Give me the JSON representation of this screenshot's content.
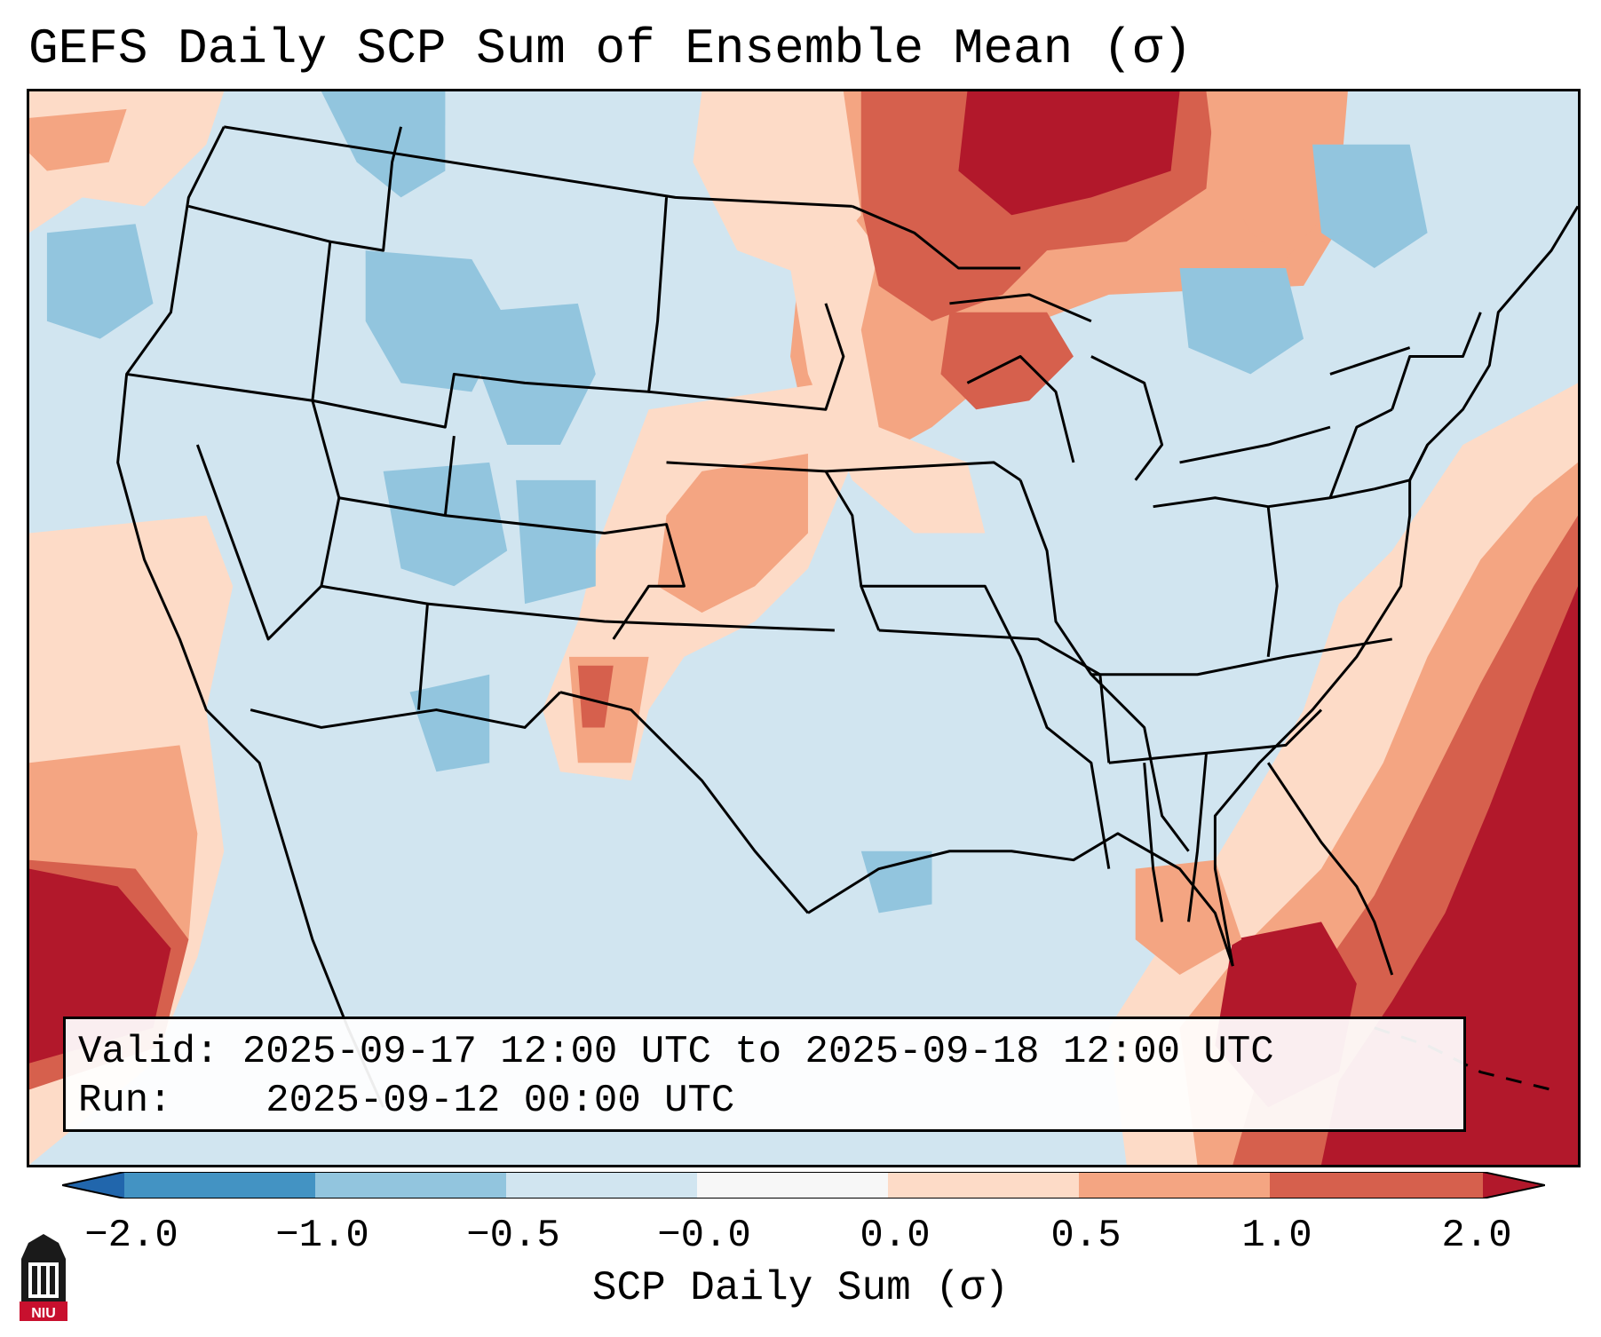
{
  "title": "GEFS Daily SCP Sum of Ensemble Mean (σ)",
  "info_box": {
    "valid_label": "Valid:",
    "valid_value": "2025-09-17 12:00 UTC to 2025-09-18 12:00 UTC",
    "run_label": "Run:",
    "run_value": "2025-09-12 00:00 UTC"
  },
  "colorbar": {
    "label": "SCP Daily Sum (σ)",
    "ticks": [
      "−2.0",
      "−1.0",
      "−0.5",
      "−0.0",
      "0.0",
      "0.5",
      "1.0",
      "2.0"
    ],
    "bins": [
      {
        "range": "< -2.0",
        "color": "#2166ac"
      },
      {
        "range": "-2.0 to -1.0",
        "color": "#4393c3"
      },
      {
        "range": "-1.0 to -0.5",
        "color": "#92c5de"
      },
      {
        "range": "-0.5 to -0.0",
        "color": "#d1e5f0"
      },
      {
        "range": "-0.0 to 0.0",
        "color": "#f7f7f7"
      },
      {
        "range": "0.0 to 0.5",
        "color": "#fddbc7"
      },
      {
        "range": "0.5 to 1.0",
        "color": "#f4a582"
      },
      {
        "range": "1.0 to 2.0",
        "color": "#d6604d"
      },
      {
        "range": "> 2.0",
        "color": "#b2182b"
      }
    ]
  },
  "logo": {
    "text": "NIU",
    "name": "Northern Illinois University"
  },
  "colors": {
    "background": "#d1e5f0",
    "pos_light": "#fddbc7",
    "pos_mid": "#f4a582",
    "pos_strong": "#d6604d",
    "pos_max": "#b2182b",
    "neg_light": "#92c5de",
    "logo_red": "#c8102e"
  }
}
